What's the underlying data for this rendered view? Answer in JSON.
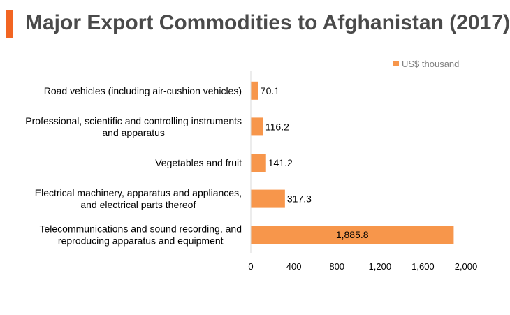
{
  "colors": {
    "accent": "#f26522",
    "bar": "#f7964b",
    "title_text": "#4a4a4a",
    "legend_text": "#7f7f7f"
  },
  "chart_data": {
    "type": "bar",
    "orientation": "horizontal",
    "title": "Major Export Commodities to Afghanistan (2017)",
    "categories": [
      [
        "Road vehicles (including air-cushion vehicles)"
      ],
      [
        "Professional, scientific and controlling instruments",
        "and apparatus"
      ],
      [
        "Vegetables and fruit"
      ],
      [
        "Electrical machinery, apparatus and appliances,",
        "and electrical parts thereof"
      ],
      [
        "Telecommunications and sound recording, and",
        "reproducing apparatus and equipment"
      ]
    ],
    "series": [
      {
        "name": "US$ thousand",
        "values": [
          70.1,
          116.2,
          141.2,
          317.3,
          1885.8
        ],
        "labels": [
          "70.1",
          "116.2",
          "141.2",
          "317.3",
          "1,885.8"
        ]
      }
    ],
    "xlim": [
      0,
      2000
    ],
    "x_ticks": [
      0,
      400,
      800,
      1200,
      1600,
      2000
    ],
    "x_tick_labels": [
      "0",
      "400",
      "800",
      "1,200",
      "1,600",
      "2,000"
    ],
    "grid": false,
    "legend_position": "top-right"
  }
}
